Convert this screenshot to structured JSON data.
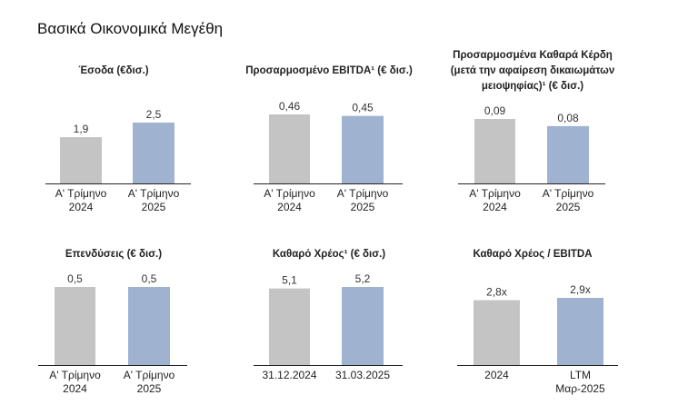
{
  "page_title": "Βασικά Οικονομικά Μεγέθη",
  "colors": {
    "bar_prior": "#c4c4c4",
    "bar_current": "#9fb2cf",
    "axis": "#222222"
  },
  "chart_data": [
    {
      "type": "bar",
      "title": "Έσοδα (€δισ.)",
      "categories": [
        [
          "Α' Τρίμηνο",
          "2024"
        ],
        [
          "Α' Τρίμηνο",
          "2025"
        ]
      ],
      "values": [
        1.9,
        2.5
      ],
      "value_labels": [
        "1,9",
        "2,5"
      ],
      "ylim": [
        0,
        2.5
      ]
    },
    {
      "type": "bar",
      "title": "Προσαρμοσμένο EBITDA¹ (€ δισ.)",
      "categories": [
        [
          "Α' Τρίμηνο",
          "2024"
        ],
        [
          "Α' Τρίμηνο",
          "2025"
        ]
      ],
      "values": [
        0.46,
        0.45
      ],
      "value_labels": [
        "0,46",
        "0,45"
      ],
      "ylim": [
        0,
        0.46
      ]
    },
    {
      "type": "bar",
      "title": "Προσαρμοσμένα Καθαρά Κέρδη (μετά την αφαίρεση δικαιωμάτων μειοψηφίας)¹ (€ δισ.)",
      "title_lines": [
        "Προσαρμοσμένα Καθαρά Κέρδη",
        "(μετά την αφαίρεση δικαιωμάτων",
        "μειοψηφίας)¹ (€ δισ.)"
      ],
      "categories": [
        [
          "Α' Τρίμηνο",
          "2024"
        ],
        [
          "Α' Τρίμηνο",
          "2025"
        ]
      ],
      "values": [
        0.09,
        0.08
      ],
      "value_labels": [
        "0,09",
        "0,08"
      ],
      "ylim": [
        0,
        0.09
      ]
    },
    {
      "type": "bar",
      "title": "Επενδύσεις (€ δισ.)",
      "categories": [
        [
          "Α' Τρίμηνο",
          "2024"
        ],
        [
          "Α' Τρίμηνο",
          "2025"
        ]
      ],
      "values": [
        0.5,
        0.5
      ],
      "value_labels": [
        "0,5",
        "0,5"
      ],
      "ylim": [
        0,
        0.5
      ]
    },
    {
      "type": "bar",
      "title": "Καθαρό Χρέος¹ (€ δισ.)",
      "categories": [
        [
          "31.12.2024"
        ],
        [
          "31.03.2025"
        ]
      ],
      "values": [
        5.1,
        5.2
      ],
      "value_labels": [
        "5,1",
        "5,2"
      ],
      "ylim": [
        0,
        5.2
      ]
    },
    {
      "type": "bar",
      "title": "Καθαρό Χρέος / EBITDA",
      "categories": [
        [
          "2024"
        ],
        [
          "LTM",
          "Μαρ-2025"
        ]
      ],
      "values": [
        2.8,
        2.9
      ],
      "value_labels": [
        "2,8x",
        "2,9x"
      ],
      "ylim": [
        0,
        2.9
      ]
    }
  ]
}
